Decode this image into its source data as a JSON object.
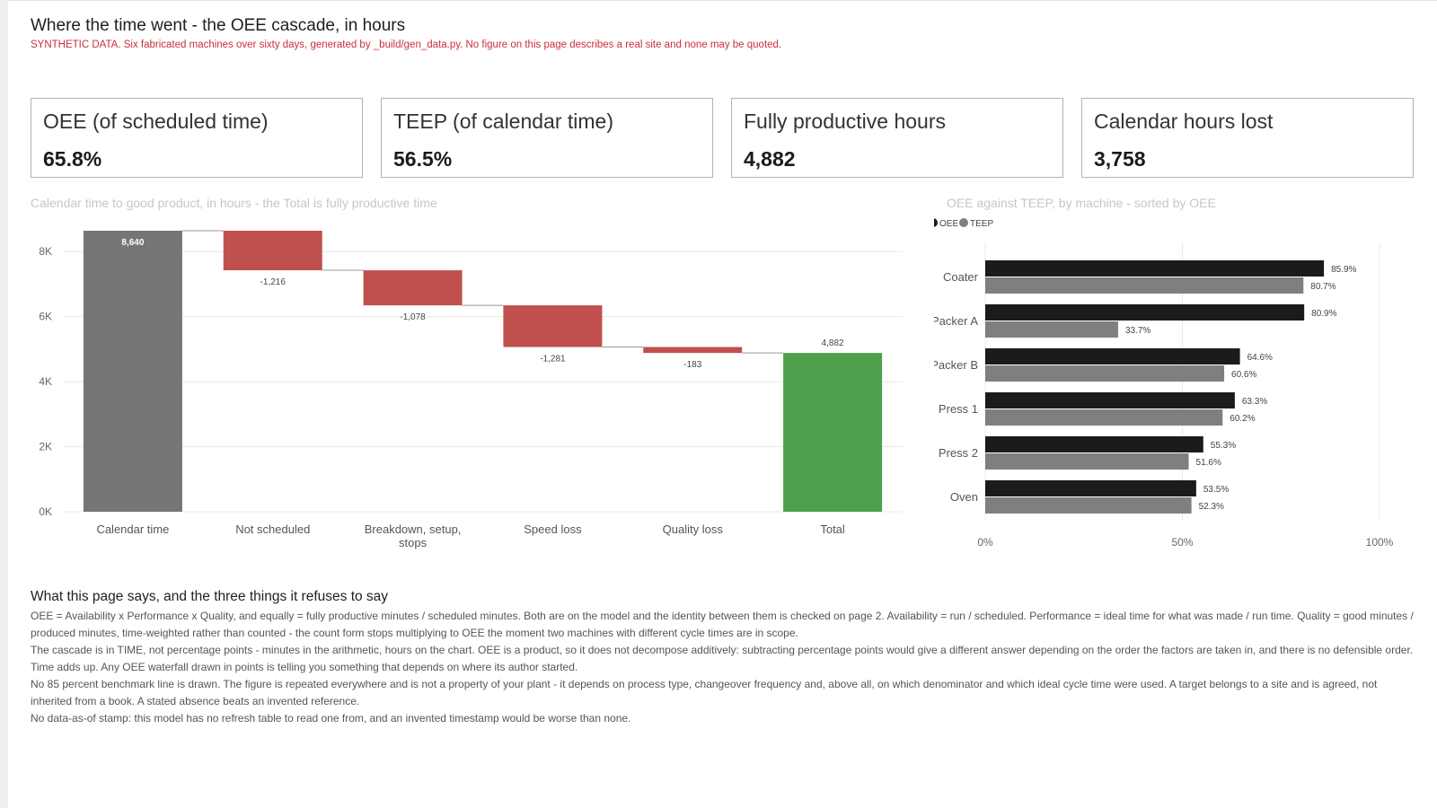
{
  "page": {
    "title": "Where the time went - the OEE cascade, in hours",
    "warning": "SYNTHETIC DATA. Six fabricated machines over sixty days, generated by _build/gen_data.py. No figure on this page describes a real site and none may be quoted."
  },
  "cards": [
    {
      "label": "OEE (of scheduled time)",
      "value": "65.8%"
    },
    {
      "label": "TEEP (of calendar time)",
      "value": "56.5%"
    },
    {
      "label": "Fully productive hours",
      "value": "4,882"
    },
    {
      "label": "Calendar hours lost",
      "value": "3,758"
    }
  ],
  "waterfall_title": "Calendar time to good product, in hours - the Total is fully productive time",
  "bars_title": "OEE against TEEP, by machine - sorted by OEE",
  "colors": {
    "total_start": "#767676",
    "decrease": "#c0504d",
    "total_end": "#4ea04d",
    "oee": "#1b1b1b",
    "teep": "#7f7f7f",
    "grid": "#e8e8e8",
    "axis_text": "#666666"
  },
  "chart_data": [
    {
      "type": "bar",
      "subtype": "waterfall",
      "title": "Calendar time to good product, in hours - the Total is fully productive time",
      "categories": [
        "Calendar time",
        "Not scheduled",
        "Breakdown, setup, stops",
        "Speed loss",
        "Quality loss",
        "Total"
      ],
      "category_lines": [
        [
          "Calendar time"
        ],
        [
          "Not scheduled"
        ],
        [
          "Breakdown, setup,",
          "stops"
        ],
        [
          "Speed loss"
        ],
        [
          "Quality loss"
        ],
        [
          "Total"
        ]
      ],
      "values": [
        8640,
        -1216,
        -1078,
        -1281,
        -183,
        4882
      ],
      "kinds": [
        "total",
        "decrease",
        "decrease",
        "decrease",
        "decrease",
        "total"
      ],
      "data_labels": [
        "8,640",
        "-1,216",
        "-1,078",
        "-1,281",
        "-183",
        "4,882"
      ],
      "y_ticks": [
        0,
        2000,
        4000,
        6000,
        8000
      ],
      "y_tick_labels": [
        "0K",
        "2K",
        "4K",
        "6K",
        "8K"
      ],
      "ylim": [
        0,
        8640
      ],
      "grid": true
    },
    {
      "type": "bar",
      "orientation": "horizontal",
      "title": "OEE against TEEP, by machine - sorted by OEE",
      "categories": [
        "Coater",
        "Packer A",
        "Packer B",
        "Press 1",
        "Press 2",
        "Oven"
      ],
      "series": [
        {
          "name": "OEE",
          "values": [
            85.9,
            80.9,
            64.6,
            63.3,
            55.3,
            53.5
          ],
          "labels": [
            "85.9%",
            "80.9%",
            "64.6%",
            "63.3%",
            "55.3%",
            "53.5%"
          ]
        },
        {
          "name": "TEEP",
          "values": [
            80.7,
            33.7,
            60.6,
            60.2,
            51.6,
            52.3
          ],
          "labels": [
            "80.7%",
            "33.7%",
            "60.6%",
            "60.2%",
            "51.6%",
            "52.3%"
          ]
        }
      ],
      "x_ticks": [
        0,
        50,
        100
      ],
      "x_tick_labels": [
        "0%",
        "50%",
        "100%"
      ],
      "xlim": [
        0,
        100
      ],
      "legend": "top-left",
      "grid": true
    }
  ],
  "notes": {
    "heading": "What this page says, and the three things it refuses to say",
    "paragraphs": [
      "OEE = Availability x Performance x Quality, and equally = fully productive minutes / scheduled minutes. Both are on the model and the identity between them is checked on page 2. Availability = run / scheduled. Performance = ideal time for what was made / run time. Quality = good minutes / produced minutes, time-weighted rather than counted - the count form stops multiplying to OEE the moment two machines with different cycle times are in scope.",
      "The cascade is in TIME, not percentage points - minutes in the arithmetic, hours on the chart. OEE is a product, so it does not decompose additively: subtracting percentage points would give a different answer depending on the order the factors are taken in, and there is no defensible order. Time adds up. Any OEE waterfall drawn in points is telling you something that depends on where its author started.",
      "No 85 percent benchmark line is drawn. The figure is repeated everywhere and is not a property of your plant - it depends on process type, changeover frequency and, above all, on which denominator and which ideal cycle time were used. A target belongs to a site and is agreed, not inherited from a book. A stated absence beats an invented reference.",
      "No data-as-of stamp: this model has no refresh table to read one from, and an invented timestamp would be worse than none."
    ]
  }
}
